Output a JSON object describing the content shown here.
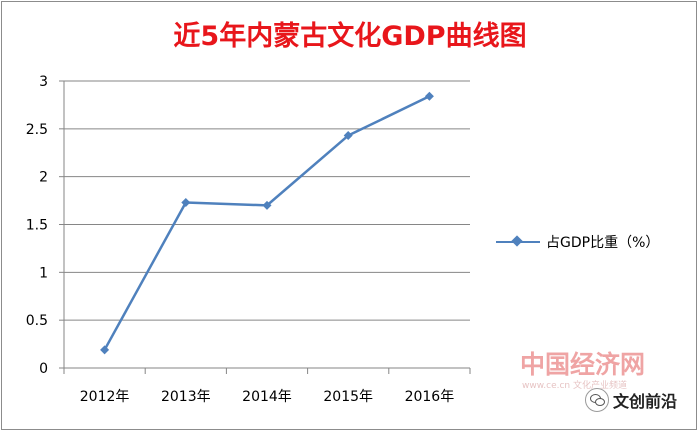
{
  "title": "近5年内蒙古文化GDP曲线图",
  "legend": {
    "label": "占GDP比重（%）"
  },
  "watermark": {
    "text": "中国经济网",
    "sub": "www.ce.cn  文化产业频道"
  },
  "badge": {
    "text": "文创前沿"
  },
  "colors": {
    "series": "#4f81bd",
    "title": "#e8161b",
    "grid": "#868686"
  },
  "chart_data": {
    "type": "line",
    "title": "近5年内蒙古文化GDP曲线图",
    "categories": [
      "2012年",
      "2013年",
      "2014年",
      "2015年",
      "2016年"
    ],
    "series": [
      {
        "name": "占GDP比重（%）",
        "values": [
          0.19,
          1.73,
          1.7,
          2.43,
          2.84
        ]
      }
    ],
    "ylim": [
      0,
      3
    ],
    "yticks": [
      0,
      0.5,
      1,
      1.5,
      2,
      2.5,
      3
    ],
    "ytick_labels": [
      "0",
      "0.5",
      "1",
      "1.5",
      "2",
      "2.5",
      "3"
    ],
    "grid": true,
    "legend_position": "right"
  }
}
